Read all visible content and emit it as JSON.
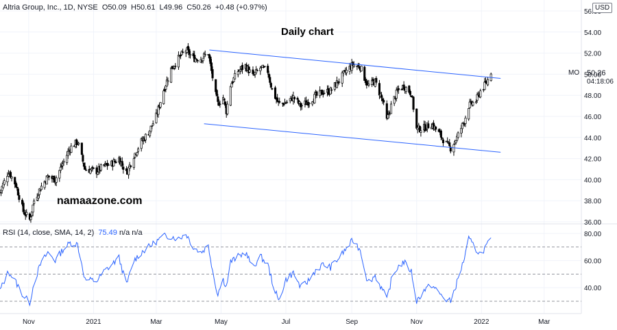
{
  "legend": {
    "symbol": "Altria Group, Inc., 1D, NYSE",
    "open": "O50.09",
    "high": "H50.61",
    "low": "L49.96",
    "close": "C50.26",
    "change": "+0.48 (+0.97%)"
  },
  "title": "Daily chart",
  "watermark": "namaazone.com",
  "currency": "USD",
  "ticker": "MO",
  "last_price": "50.26",
  "countdown": "04:18:06",
  "rsi_legend": {
    "label": "RSI (14, close, SMA, 14, 2)",
    "value": "75.49",
    "na1": "n/a",
    "na2": "n/a"
  },
  "colors": {
    "candle": "#000000",
    "channel": "#2962ff",
    "rsi_line": "#2962ff",
    "rsi_bands": "#787b86"
  },
  "chart_data": [
    {
      "type": "candlestick",
      "name": "Price",
      "yticks": [
        "56.00",
        "54.00",
        "52.00",
        "50.00",
        "48.00",
        "46.00",
        "44.00",
        "42.00",
        "40.00",
        "38.00",
        "36.00"
      ],
      "xticks": [
        "Nov",
        "2021",
        "Mar",
        "May",
        "Jul",
        "Sep",
        "Nov",
        "2022",
        "Mar"
      ],
      "ylim": [
        36,
        56
      ],
      "x_range": [
        "2020-10-05",
        "2022-04-05"
      ],
      "tick_dates": [
        "2020-11-01",
        "2021-01-01",
        "2021-03-01",
        "2021-05-01",
        "2021-07-01",
        "2021-09-01",
        "2021-11-01",
        "2022-01-01",
        "2022-03-01"
      ],
      "close_series": [
        [
          "2020-10-05",
          38.8
        ],
        [
          "2020-10-13",
          40.8
        ],
        [
          "2020-10-20",
          39.5
        ],
        [
          "2020-10-27",
          37.0
        ],
        [
          "2020-11-02",
          36.2
        ],
        [
          "2020-11-06",
          38.0
        ],
        [
          "2020-11-12",
          39.2
        ],
        [
          "2020-11-19",
          40.3
        ],
        [
          "2020-11-26",
          40.0
        ],
        [
          "2020-12-03",
          41.5
        ],
        [
          "2020-12-10",
          43.0
        ],
        [
          "2020-12-17",
          43.6
        ],
        [
          "2020-12-24",
          41.0
        ],
        [
          "2021-01-04",
          40.8
        ],
        [
          "2021-01-11",
          41.3
        ],
        [
          "2021-01-18",
          41.5
        ],
        [
          "2021-01-25",
          42.0
        ],
        [
          "2021-02-01",
          40.6
        ],
        [
          "2021-02-08",
          42.3
        ],
        [
          "2021-02-15",
          43.6
        ],
        [
          "2021-02-22",
          44.5
        ],
        [
          "2021-03-01",
          46.0
        ],
        [
          "2021-03-08",
          48.5
        ],
        [
          "2021-03-15",
          50.5
        ],
        [
          "2021-03-22",
          51.5
        ],
        [
          "2021-03-29",
          52.3
        ],
        [
          "2021-04-05",
          51.5
        ],
        [
          "2021-04-12",
          51.5
        ],
        [
          "2021-04-19",
          52.0
        ],
        [
          "2021-04-26",
          48.0
        ],
        [
          "2021-04-28",
          47.2
        ],
        [
          "2021-05-03",
          47.8
        ],
        [
          "2021-05-06",
          46.5
        ],
        [
          "2021-05-10",
          49.0
        ],
        [
          "2021-05-17",
          50.3
        ],
        [
          "2021-05-24",
          50.8
        ],
        [
          "2021-05-31",
          49.8
        ],
        [
          "2021-06-07",
          50.6
        ],
        [
          "2021-06-14",
          50.3
        ],
        [
          "2021-06-18",
          48.5
        ],
        [
          "2021-06-24",
          47.2
        ],
        [
          "2021-07-01",
          47.3
        ],
        [
          "2021-07-08",
          47.8
        ],
        [
          "2021-07-15",
          47.0
        ],
        [
          "2021-07-22",
          47.4
        ],
        [
          "2021-07-29",
          47.9
        ],
        [
          "2021-08-05",
          48.3
        ],
        [
          "2021-08-12",
          48.4
        ],
        [
          "2021-08-19",
          49.3
        ],
        [
          "2021-08-26",
          50.2
        ],
        [
          "2021-09-02",
          50.9
        ],
        [
          "2021-09-09",
          50.7
        ],
        [
          "2021-09-16",
          48.9
        ],
        [
          "2021-09-23",
          49.3
        ],
        [
          "2021-09-30",
          47.5
        ],
        [
          "2021-10-04",
          45.6
        ],
        [
          "2021-10-08",
          47.0
        ],
        [
          "2021-10-14",
          48.4
        ],
        [
          "2021-10-20",
          48.9
        ],
        [
          "2021-10-27",
          48.2
        ],
        [
          "2021-11-01",
          44.8
        ],
        [
          "2021-11-08",
          44.9
        ],
        [
          "2021-11-15",
          45.3
        ],
        [
          "2021-11-22",
          44.4
        ],
        [
          "2021-11-29",
          43.4
        ],
        [
          "2021-12-03",
          43.0
        ],
        [
          "2021-12-09",
          44.0
        ],
        [
          "2021-12-16",
          45.6
        ],
        [
          "2021-12-20",
          47.0
        ],
        [
          "2021-12-27",
          47.5
        ],
        [
          "2021-12-31",
          48.4
        ],
        [
          "2022-01-06",
          49.2
        ],
        [
          "2022-01-10",
          50.26
        ]
      ],
      "channel_upper": [
        [
          "2021-04-20",
          52.3
        ],
        [
          "2022-01-19",
          49.6
        ]
      ],
      "channel_lower": [
        [
          "2021-04-15",
          45.3
        ],
        [
          "2022-01-19",
          42.6
        ]
      ],
      "last_close": 50.26
    },
    {
      "type": "line",
      "name": "RSI",
      "yticks": [
        "80.00",
        "60.00",
        "40.00"
      ],
      "ylim": [
        26,
        84
      ],
      "levels": [
        70,
        50,
        30
      ],
      "values": [
        [
          "2020-10-05",
          38
        ],
        [
          "2020-10-13",
          52
        ],
        [
          "2020-10-20",
          44
        ],
        [
          "2020-10-27",
          34
        ],
        [
          "2020-11-02",
          29
        ],
        [
          "2020-11-06",
          44
        ],
        [
          "2020-11-12",
          57
        ],
        [
          "2020-11-19",
          66
        ],
        [
          "2020-11-26",
          60
        ],
        [
          "2020-12-03",
          68
        ],
        [
          "2020-12-10",
          73
        ],
        [
          "2020-12-17",
          72
        ],
        [
          "2020-12-24",
          46
        ],
        [
          "2021-01-04",
          45
        ],
        [
          "2021-01-11",
          52
        ],
        [
          "2021-01-18",
          57
        ],
        [
          "2021-01-25",
          62
        ],
        [
          "2021-02-01",
          42
        ],
        [
          "2021-02-08",
          60
        ],
        [
          "2021-02-15",
          66
        ],
        [
          "2021-02-22",
          70
        ],
        [
          "2021-03-01",
          74
        ],
        [
          "2021-03-08",
          78
        ],
        [
          "2021-03-15",
          78
        ],
        [
          "2021-03-22",
          76
        ],
        [
          "2021-03-29",
          80
        ],
        [
          "2021-04-05",
          70
        ],
        [
          "2021-04-12",
          66
        ],
        [
          "2021-04-19",
          71
        ],
        [
          "2021-04-26",
          40
        ],
        [
          "2021-04-28",
          36
        ],
        [
          "2021-05-03",
          46
        ],
        [
          "2021-05-06",
          41
        ],
        [
          "2021-05-10",
          59
        ],
        [
          "2021-05-17",
          63
        ],
        [
          "2021-05-24",
          66
        ],
        [
          "2021-05-31",
          55
        ],
        [
          "2021-06-07",
          63
        ],
        [
          "2021-06-14",
          57
        ],
        [
          "2021-06-18",
          45
        ],
        [
          "2021-06-24",
          30
        ],
        [
          "2021-07-01",
          46
        ],
        [
          "2021-07-08",
          51
        ],
        [
          "2021-07-15",
          40
        ],
        [
          "2021-07-22",
          45
        ],
        [
          "2021-07-29",
          53
        ],
        [
          "2021-08-05",
          57
        ],
        [
          "2021-08-12",
          55
        ],
        [
          "2021-08-19",
          61
        ],
        [
          "2021-08-26",
          68
        ],
        [
          "2021-09-02",
          75
        ],
        [
          "2021-09-09",
          68
        ],
        [
          "2021-09-16",
          44
        ],
        [
          "2021-09-23",
          49
        ],
        [
          "2021-09-30",
          38
        ],
        [
          "2021-10-04",
          31
        ],
        [
          "2021-10-08",
          45
        ],
        [
          "2021-10-14",
          55
        ],
        [
          "2021-10-20",
          59
        ],
        [
          "2021-10-27",
          52
        ],
        [
          "2021-11-01",
          30
        ],
        [
          "2021-11-08",
          38
        ],
        [
          "2021-11-15",
          42
        ],
        [
          "2021-11-22",
          36
        ],
        [
          "2021-11-29",
          31
        ],
        [
          "2021-12-03",
          30
        ],
        [
          "2021-12-09",
          44
        ],
        [
          "2021-12-16",
          62
        ],
        [
          "2021-12-20",
          76
        ],
        [
          "2021-12-27",
          68
        ],
        [
          "2021-12-31",
          65
        ],
        [
          "2022-01-06",
          71
        ],
        [
          "2022-01-10",
          75.49
        ]
      ]
    }
  ]
}
